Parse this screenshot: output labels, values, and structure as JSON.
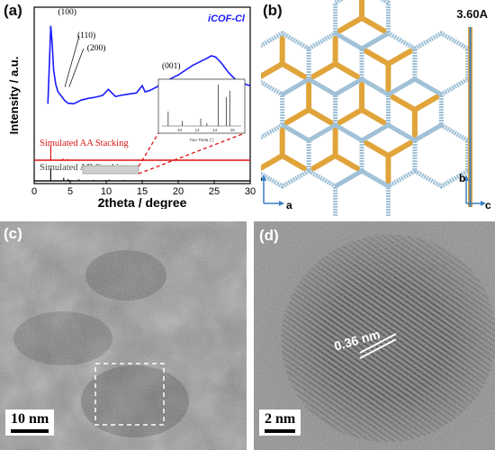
{
  "panels": {
    "a": "(a)",
    "b": "(b)",
    "c": "(c)",
    "d": "(d)"
  },
  "chart_data": {
    "type": "line",
    "title": "iCOF-Cl",
    "xlabel": "2theta / degree",
    "ylabel": "Intensity / a.u.",
    "xlim": [
      0,
      30
    ],
    "xticks": [
      0,
      5,
      10,
      15,
      20,
      25,
      30
    ],
    "series": [
      {
        "name": "iCOF-Cl",
        "color": "#1a1aff",
        "x": [
          1.9,
          2.1,
          2.3,
          2.5,
          2.7,
          3.0,
          3.3,
          3.7,
          4.2,
          4.7,
          5.5,
          6.5,
          7.5,
          8.5,
          9.5,
          10.3,
          10.8,
          11.3,
          12.0,
          13.0,
          14.2,
          15.0,
          15.4,
          16.0,
          17.0,
          18.0,
          19.0,
          20.0,
          21.0,
          22.0,
          23.0,
          24.0,
          24.6,
          25.2,
          26.0,
          27.0,
          28.0,
          29.0,
          30.0
        ],
        "y": [
          0.3,
          0.62,
          0.95,
          0.8,
          0.58,
          0.46,
          0.4,
          0.37,
          0.33,
          0.305,
          0.3,
          0.33,
          0.345,
          0.355,
          0.37,
          0.42,
          0.39,
          0.36,
          0.37,
          0.38,
          0.39,
          0.45,
          0.4,
          0.41,
          0.44,
          0.48,
          0.51,
          0.54,
          0.58,
          0.62,
          0.65,
          0.68,
          0.7,
          0.69,
          0.64,
          0.56,
          0.5,
          0.47,
          0.45
        ]
      },
      {
        "name": "Simulated AA Stacking",
        "color": "#dd1111",
        "x": [
          2.3,
          4.0,
          4.6,
          6.1,
          8.2
        ],
        "y": [
          1.0,
          0.12,
          0.08,
          0.05,
          0.04
        ]
      },
      {
        "name": "Simulated AB Stacking",
        "color": "#111111",
        "x": [
          2.3,
          4.1,
          4.7,
          6.2,
          8.3,
          10.4,
          12.5,
          15.0
        ],
        "y": [
          1.0,
          0.25,
          0.15,
          0.12,
          0.08,
          0.1,
          0.08,
          0.06
        ]
      }
    ],
    "annotations": [
      {
        "label": "(100)",
        "x": 2.3
      },
      {
        "label": "(110)",
        "x": 4.0
      },
      {
        "label": "(200)",
        "x": 4.6
      },
      {
        "label": "(001)",
        "x": 24.6
      }
    ],
    "inset": {
      "x_label": "Two Theta (°)",
      "xticks": [
        "10",
        "12",
        "14",
        "16"
      ],
      "peaks_x": [
        8.7,
        10.3,
        12.4,
        13.1,
        14.4,
        15.3,
        15.7
      ],
      "peaks_h": [
        0.35,
        0.12,
        0.18,
        0.07,
        1.0,
        0.7,
        0.85
      ]
    },
    "legend_position": "inside-right",
    "grid": false
  },
  "panel_b": {
    "spacing": "3.60A",
    "axes_main": [
      "b",
      "a"
    ],
    "axes_side": [
      "b",
      "c"
    ],
    "colors": {
      "framework": "#9fc0d6",
      "linker": "#e0a43a",
      "pillar": "#3a7fc4"
    }
  },
  "panel_c": {
    "scale": "10 nm"
  },
  "panel_d": {
    "scale": "2 nm",
    "spacing_label": "0.36 nm"
  }
}
